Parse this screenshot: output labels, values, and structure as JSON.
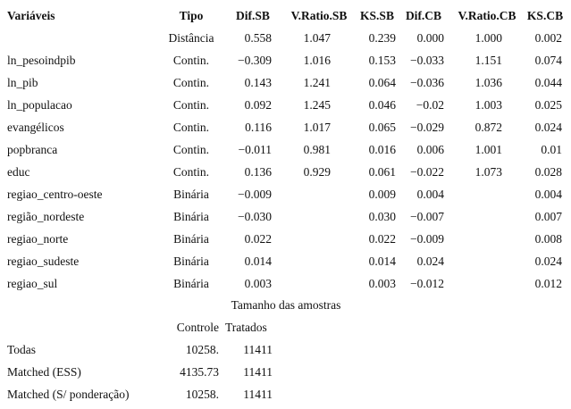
{
  "table": {
    "columns": [
      "Variáveis",
      "Tipo",
      "Dif.SB",
      "V.Ratio.SB",
      "KS.SB",
      "Dif.CB",
      "V.Ratio.CB",
      "KS.CB"
    ],
    "rows": [
      [
        null,
        "Distância",
        "0.558",
        "1.047",
        "0.239",
        "0.000",
        "1.000",
        "0.002"
      ],
      [
        "ln_pesoindpib",
        "Contin.",
        "−0.309",
        "1.016",
        "0.153",
        "−0.033",
        "1.151",
        "0.074"
      ],
      [
        "ln_pib",
        "Contin.",
        "0.143",
        "1.241",
        "0.064",
        "−0.036",
        "1.036",
        "0.044"
      ],
      [
        "ln_populacao",
        "Contin.",
        "0.092",
        "1.245",
        "0.046",
        "−0.02",
        "1.003",
        "0.025"
      ],
      [
        "evangélicos",
        "Contin.",
        "0.116",
        "1.017",
        "0.065",
        "−0.029",
        "0.872",
        "0.024"
      ],
      [
        "popbranca",
        "Contin.",
        "−0.011",
        "0.981",
        "0.016",
        "0.006",
        "1.001",
        "0.01"
      ],
      [
        "educ",
        "Contin.",
        "0.136",
        "0.929",
        "0.061",
        "−0.022",
        "1.073",
        "0.028"
      ],
      [
        "regiao_centro-oeste",
        "Binária",
        "−0.009",
        null,
        "0.009",
        "0.004",
        null,
        "0.004"
      ],
      [
        "região_nordeste",
        "Binária",
        "−0.030",
        null,
        "0.030",
        "−0.007",
        null,
        "0.007"
      ],
      [
        "regiao_norte",
        "Binária",
        "0.022",
        null,
        "0.022",
        "−0.009",
        null,
        "0.008"
      ],
      [
        "regiao_sudeste",
        "Binária",
        "0.014",
        null,
        "0.014",
        "0.024",
        null,
        "0.024"
      ],
      [
        "regiao_sul",
        "Binária",
        "0.003",
        null,
        "0.003",
        "−0.012",
        null,
        "0.012"
      ]
    ]
  },
  "sample_sizes": {
    "title": "Tamanho das amostras",
    "columns": [
      "Controle",
      "Tratados"
    ],
    "rows": [
      {
        "label": "Todas",
        "values": [
          "10258.",
          "11411"
        ]
      },
      {
        "label": "Matched (ESS)",
        "values": [
          "4135.73",
          "11411"
        ]
      },
      {
        "label": "Matched (S/ ponderação)",
        "values": [
          "10258.",
          "11411"
        ]
      }
    ]
  }
}
